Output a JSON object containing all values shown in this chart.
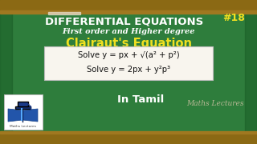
{
  "bg_color": "#2e7d3c",
  "bg_color2": "#1e6b2e",
  "tray_color": "#8B6914",
  "tray_top_color": "#a07820",
  "title_line1": "DIFFERENTIAL EQUATIONS",
  "title_number": "#18",
  "title_line2": "First order and Higher degree",
  "title_line3": "Clairaut's Equation",
  "eq1_pre": "Solve y = px + ",
  "eq1_sqrt": "√",
  "eq1_post": "(a² + p²)",
  "eq2": "Solve y = 2px + y²p³",
  "bottom_text": "In Tamil",
  "watermark": "Maths Lectures",
  "box_bg": "#f8f5ee",
  "title1_color": "#ffffff",
  "title2_color": "#ffffff",
  "title3_color": "#f0e020",
  "number_color": "#f0e020",
  "eq_color": "#111111",
  "bottom_color": "#ffffff",
  "watermark_color": "#c8bfa0"
}
